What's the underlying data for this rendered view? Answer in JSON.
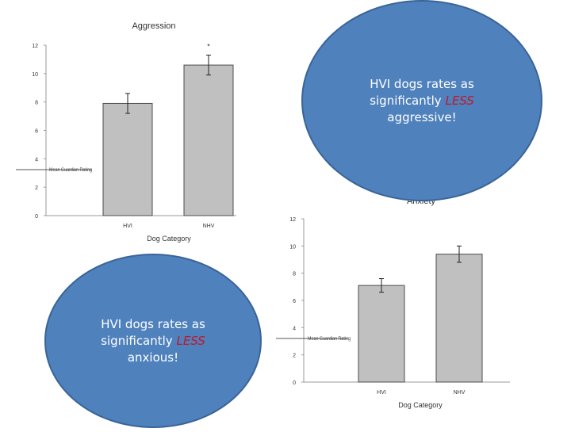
{
  "chart_data": [
    {
      "type": "bar",
      "title": "Aggression",
      "xlabel": "Dog Category",
      "ylabel": "Mean Guardian Rating",
      "categories": [
        "HVI",
        "NHV"
      ],
      "values": [
        7.9,
        10.6
      ],
      "errors": [
        0.7,
        0.7
      ],
      "significance_marker": "*",
      "significance_category": "NHV",
      "ylim": [
        0,
        12
      ],
      "yticks": [
        "0",
        "2",
        "4",
        "6",
        "8",
        "10",
        "12"
      ],
      "bar_color": "#c0c0c0"
    },
    {
      "type": "bar",
      "title": "Anxiety",
      "xlabel": "Dog Category",
      "ylabel": "Mean Guardian Rating",
      "categories": [
        "HVI",
        "NHV"
      ],
      "values": [
        7.1,
        9.4
      ],
      "errors": [
        0.5,
        0.6
      ],
      "ylim": [
        0,
        12
      ],
      "yticks": [
        "0",
        "2",
        "4",
        "6",
        "8",
        "10",
        "12"
      ],
      "bar_color": "#c0c0c0"
    }
  ],
  "callouts": [
    {
      "line1": "HVI dogs rates as",
      "line2_prefix": "significantly ",
      "line2_emph": "LESS",
      "line3": "aggressive!"
    },
    {
      "line1": "HVI dogs rates as",
      "line2_prefix": "significantly ",
      "line2_emph": "LESS",
      "line3": "anxious!"
    }
  ],
  "colors": {
    "ellipse_fill": "#4f81bd",
    "emphasis": "#c0182a"
  }
}
